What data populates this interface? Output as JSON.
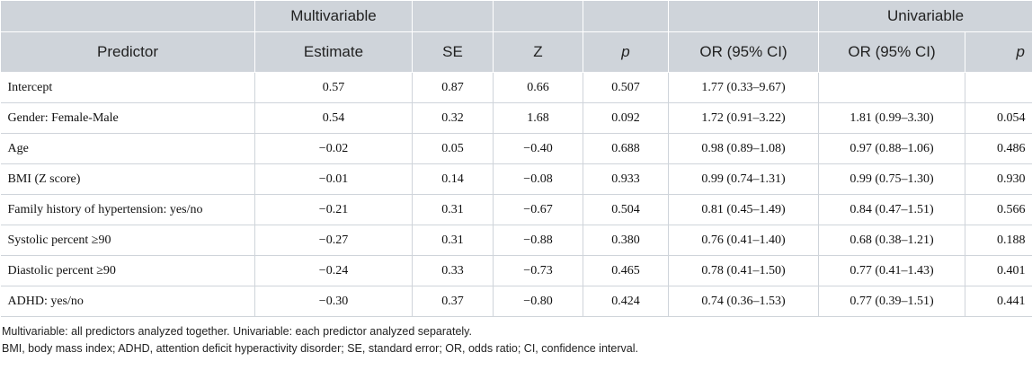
{
  "header": {
    "group_multivariable": "Multivariable",
    "group_univariable": "Univariable",
    "columns": [
      "Predictor",
      "Estimate",
      "SE",
      "Z",
      "p",
      "OR (95% CI)",
      "OR (95% CI)",
      "p"
    ]
  },
  "rows": [
    {
      "predictor": "Intercept",
      "estimate": "0.57",
      "se": "0.87",
      "z": "0.66",
      "p": "0.507",
      "or_multi": "1.77 (0.33–9.67)",
      "or_uni": "",
      "p_uni": ""
    },
    {
      "predictor": "Gender: Female-Male",
      "estimate": "0.54",
      "se": "0.32",
      "z": "1.68",
      "p": "0.092",
      "or_multi": "1.72 (0.91–3.22)",
      "or_uni": "1.81 (0.99–3.30)",
      "p_uni": "0.054"
    },
    {
      "predictor": "Age",
      "estimate": "−0.02",
      "se": "0.05",
      "z": "−0.40",
      "p": "0.688",
      "or_multi": "0.98 (0.89–1.08)",
      "or_uni": "0.97 (0.88–1.06)",
      "p_uni": "0.486"
    },
    {
      "predictor": "BMI (Z score)",
      "estimate": "−0.01",
      "se": "0.14",
      "z": "−0.08",
      "p": "0.933",
      "or_multi": "0.99 (0.74–1.31)",
      "or_uni": "0.99 (0.75–1.30)",
      "p_uni": "0.930"
    },
    {
      "predictor": "Family history of hypertension: yes/no",
      "estimate": "−0.21",
      "se": "0.31",
      "z": "−0.67",
      "p": "0.504",
      "or_multi": "0.81 (0.45–1.49)",
      "or_uni": "0.84 (0.47–1.51)",
      "p_uni": "0.566"
    },
    {
      "predictor": "Systolic percent ≥90",
      "estimate": "−0.27",
      "se": "0.31",
      "z": "−0.88",
      "p": "0.380",
      "or_multi": "0.76 (0.41–1.40)",
      "or_uni": "0.68 (0.38–1.21)",
      "p_uni": "0.188"
    },
    {
      "predictor": "Diastolic percent ≥90",
      "estimate": "−0.24",
      "se": "0.33",
      "z": "−0.73",
      "p": "0.465",
      "or_multi": "0.78 (0.41–1.50)",
      "or_uni": "0.77 (0.41–1.43)",
      "p_uni": "0.401"
    },
    {
      "predictor": "ADHD: yes/no",
      "estimate": "−0.30",
      "se": "0.37",
      "z": "−0.80",
      "p": "0.424",
      "or_multi": "0.74 (0.36–1.53)",
      "or_uni": "0.77 (0.39–1.51)",
      "p_uni": "0.441"
    }
  ],
  "notes": [
    "Multivariable: all predictors analyzed together. Univariable: each predictor analyzed separately.",
    "BMI, body mass index; ADHD, attention deficit hyperactivity disorder; SE, standard error; OR, odds ratio; CI, confidence interval."
  ]
}
